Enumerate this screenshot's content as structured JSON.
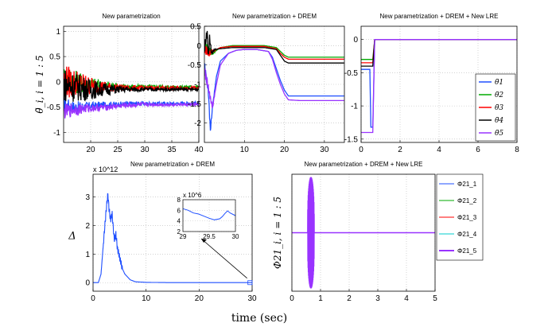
{
  "figure": {
    "xlabel": "time (sec)"
  },
  "colors": {
    "theta1": "#1f4fff",
    "theta2": "#00aa00",
    "theta3": "#ff0000",
    "theta4": "#000000",
    "theta5": "#9933ff"
  },
  "chart_data": [
    {
      "id": "p1",
      "type": "line",
      "title": "New parametrization",
      "ylabel": "θ̃_i, i = 1 : 5",
      "xlim": [
        15,
        40
      ],
      "ylim": [
        -1.2,
        1.1
      ],
      "xticks": [
        20,
        25,
        30,
        35,
        40
      ],
      "yticks": [
        -1,
        -0.5,
        0,
        0.5,
        1
      ],
      "grid": true,
      "series": [
        {
          "name": "θ̃1",
          "color": "#1f4fff",
          "x": [
            15,
            17,
            20,
            23,
            26,
            30,
            35,
            40
          ],
          "y": [
            -0.45,
            -0.5,
            -0.48,
            -0.45,
            -0.44,
            -0.43,
            -0.43,
            -0.42
          ],
          "amp": [
            0.15,
            0.12,
            0.08,
            0.06,
            0.05,
            0.04,
            0.03,
            0.03
          ]
        },
        {
          "name": "θ̃2",
          "color": "#00aa00",
          "x": [
            15,
            17,
            20,
            23,
            26,
            30,
            35,
            40
          ],
          "y": [
            0.05,
            0.0,
            -0.05,
            -0.08,
            -0.1,
            -0.1,
            -0.1,
            -0.1
          ],
          "amp": [
            0.3,
            0.25,
            0.15,
            0.1,
            0.06,
            0.04,
            0.03,
            0.03
          ]
        },
        {
          "name": "θ̃3",
          "color": "#ff0000",
          "x": [
            15,
            17,
            20,
            23,
            26,
            30,
            35,
            40
          ],
          "y": [
            0.0,
            -0.02,
            -0.08,
            -0.1,
            -0.12,
            -0.12,
            -0.12,
            -0.12
          ],
          "amp": [
            0.35,
            0.3,
            0.18,
            0.1,
            0.06,
            0.04,
            0.03,
            0.03
          ]
        },
        {
          "name": "θ̃4",
          "color": "#000000",
          "x": [
            15,
            17,
            20,
            23,
            26,
            30,
            35,
            40
          ],
          "y": [
            -0.05,
            -0.1,
            -0.15,
            -0.15,
            -0.15,
            -0.15,
            -0.15,
            -0.15
          ],
          "amp": [
            0.35,
            0.3,
            0.2,
            0.12,
            0.06,
            0.04,
            0.03,
            0.03
          ]
        },
        {
          "name": "θ̃5",
          "color": "#9933ff",
          "x": [
            15,
            17,
            20,
            23,
            26,
            30,
            35,
            40
          ],
          "y": [
            -0.6,
            -0.55,
            -0.52,
            -0.5,
            -0.47,
            -0.45,
            -0.45,
            -0.45
          ],
          "amp": [
            0.15,
            0.12,
            0.08,
            0.06,
            0.05,
            0.04,
            0.03,
            0.03
          ]
        }
      ]
    },
    {
      "id": "p2",
      "type": "line",
      "title": "New parametrization + DREM",
      "xlim": [
        0,
        35
      ],
      "ylim": [
        -2.5,
        0.5
      ],
      "xticks": [
        10,
        20,
        30
      ],
      "yticks": [
        -2,
        -1.5,
        -1,
        -0.5,
        0,
        0.5
      ],
      "grid": true,
      "series": [
        {
          "name": "θ̃1",
          "color": "#1f4fff",
          "x": [
            0,
            1,
            1.5,
            2,
            3,
            4,
            6,
            8,
            10,
            13,
            16,
            17,
            18,
            19,
            20,
            21,
            24,
            28,
            35
          ],
          "y": [
            -0.5,
            -1.2,
            -2.2,
            -1.6,
            -0.8,
            -0.4,
            -0.2,
            -0.12,
            -0.1,
            -0.1,
            -0.15,
            -0.3,
            -0.6,
            -0.9,
            -1.15,
            -1.3,
            -1.3,
            -1.3,
            -1.3
          ]
        },
        {
          "name": "θ̃2",
          "color": "#00aa00",
          "x": [
            0,
            1,
            2,
            4,
            7,
            10,
            15,
            18,
            19,
            20,
            21,
            25,
            35
          ],
          "y": [
            0.0,
            -0.1,
            -0.2,
            -0.05,
            0.0,
            0.0,
            0.0,
            -0.05,
            -0.15,
            -0.25,
            -0.3,
            -0.3,
            -0.3
          ]
        },
        {
          "name": "θ̃3",
          "color": "#ff0000",
          "x": [
            0,
            1,
            2,
            4,
            7,
            10,
            15,
            18,
            19,
            20,
            21,
            25,
            35
          ],
          "y": [
            -0.05,
            -0.2,
            -0.15,
            -0.05,
            -0.02,
            -0.02,
            -0.02,
            -0.08,
            -0.2,
            -0.3,
            -0.35,
            -0.35,
            -0.35
          ]
        },
        {
          "name": "θ̃4",
          "color": "#000000",
          "x": [
            0,
            0.7,
            1,
            1.3,
            1.8,
            2.5,
            4,
            7,
            10,
            15,
            18,
            19,
            20,
            21,
            25,
            35
          ],
          "y": [
            -0.1,
            0.35,
            -0.3,
            0.2,
            -0.2,
            -0.1,
            -0.08,
            -0.05,
            -0.05,
            -0.05,
            -0.1,
            -0.25,
            -0.4,
            -0.45,
            -0.45,
            -0.45
          ]
        },
        {
          "name": "θ̃5",
          "color": "#9933ff",
          "x": [
            0,
            1,
            2,
            3,
            4,
            6,
            8,
            10,
            13,
            16,
            17,
            18,
            19,
            20,
            21,
            24,
            28,
            35
          ],
          "y": [
            -0.6,
            -1.1,
            -1.6,
            -1.0,
            -0.5,
            -0.2,
            -0.12,
            -0.1,
            -0.1,
            -0.15,
            -0.35,
            -0.7,
            -1.0,
            -1.25,
            -1.4,
            -1.42,
            -1.42,
            -1.42
          ]
        }
      ]
    },
    {
      "id": "p3",
      "type": "line",
      "title": "New parametrization + DREM + New LRE",
      "xlim": [
        0,
        8
      ],
      "ylim": [
        -1.55,
        0.2
      ],
      "xticks": [
        0,
        2,
        4,
        6,
        8
      ],
      "yticks": [
        -1.5,
        -1,
        -0.5,
        0
      ],
      "grid": true,
      "legend": "bottom-right",
      "series": [
        {
          "name": "θ̄1",
          "color": "#1f4fff",
          "x": [
            0,
            0.45,
            0.5,
            0.6,
            0.7,
            8
          ],
          "y": [
            -0.45,
            -0.45,
            -1.32,
            -1.32,
            0.0,
            0.0
          ]
        },
        {
          "name": "θ̄2",
          "color": "#00aa00",
          "x": [
            0,
            0.45,
            0.5,
            0.6,
            0.7,
            8
          ],
          "y": [
            -0.3,
            -0.3,
            -0.3,
            -0.3,
            0.0,
            0.0
          ]
        },
        {
          "name": "θ̄3",
          "color": "#ff0000",
          "x": [
            0,
            0.45,
            0.5,
            0.6,
            0.7,
            8
          ],
          "y": [
            -0.35,
            -0.35,
            -0.35,
            -0.35,
            0.0,
            0.0
          ]
        },
        {
          "name": "θ̄4",
          "color": "#000000",
          "x": [
            0,
            0.45,
            0.5,
            0.6,
            0.7,
            8
          ],
          "y": [
            -0.4,
            -0.4,
            -0.4,
            -0.4,
            0.0,
            0.0
          ]
        },
        {
          "name": "θ̄5",
          "color": "#9933ff",
          "x": [
            0,
            0.45,
            0.5,
            0.6,
            0.7,
            8
          ],
          "y": [
            -1.4,
            -1.4,
            -1.4,
            -1.4,
            0.0,
            0.0
          ]
        }
      ]
    },
    {
      "id": "p4",
      "type": "line",
      "title": "New parametrization + DREM",
      "ylabel": "Δ",
      "exponent": "x 10^12",
      "xlim": [
        0,
        30
      ],
      "ylim": [
        -0.3,
        3.8
      ],
      "xticks": [
        0,
        10,
        20,
        30
      ],
      "yticks": [
        0,
        1,
        2,
        3
      ],
      "grid": true,
      "series": [
        {
          "name": "Δ",
          "color": "#1f4fff",
          "x": [
            0,
            1,
            1.5,
            2,
            2.5,
            2.8,
            3,
            3.3,
            3.6,
            4,
            4.3,
            4.6,
            5,
            5.5,
            6,
            7,
            8,
            10,
            15,
            20,
            30
          ],
          "y": [
            0,
            0,
            0.3,
            1.5,
            2.6,
            3.1,
            2.6,
            2.2,
            2.4,
            1.5,
            1.7,
            1.2,
            0.9,
            0.5,
            0.3,
            0.1,
            0.03,
            0.01,
            0.0,
            0.0,
            0.0
          ]
        }
      ],
      "inset": {
        "exponent": "x 10^6",
        "xlim": [
          29,
          30
        ],
        "ylim": [
          2,
          8
        ],
        "xticks": [
          29,
          29.5,
          30
        ],
        "yticks": [
          2,
          4,
          6,
          8
        ],
        "x": [
          29,
          29.1,
          29.2,
          29.3,
          29.4,
          29.5,
          29.6,
          29.7,
          29.75,
          29.8,
          29.85,
          29.9,
          30
        ],
        "y": [
          6.3,
          6.0,
          5.5,
          5.3,
          4.9,
          4.5,
          4.2,
          4.4,
          4.8,
          5.4,
          5.9,
          5.5,
          5.0
        ]
      }
    },
    {
      "id": "p5",
      "type": "line",
      "title": "New parametrization + DREM + New LRE",
      "ylabel": "Φ21_i, i = 1 : 5",
      "xlim": [
        0,
        5
      ],
      "ylim": [
        -1.05,
        1.05
      ],
      "xticks": [
        0,
        1,
        2,
        3,
        4,
        5
      ],
      "grid": true,
      "legend": "right",
      "series": [
        {
          "name": "Φ21_1",
          "color": "#1f4fff"
        },
        {
          "name": "Φ21_2",
          "color": "#00aa00"
        },
        {
          "name": "Φ21_3",
          "color": "#ff0000"
        },
        {
          "name": "Φ21_4",
          "color": "#00cccc"
        },
        {
          "name": "Φ21_5",
          "color": "#9933ff"
        }
      ],
      "burst": {
        "start": 0.55,
        "end": 0.78,
        "amp": 1.0
      }
    }
  ]
}
